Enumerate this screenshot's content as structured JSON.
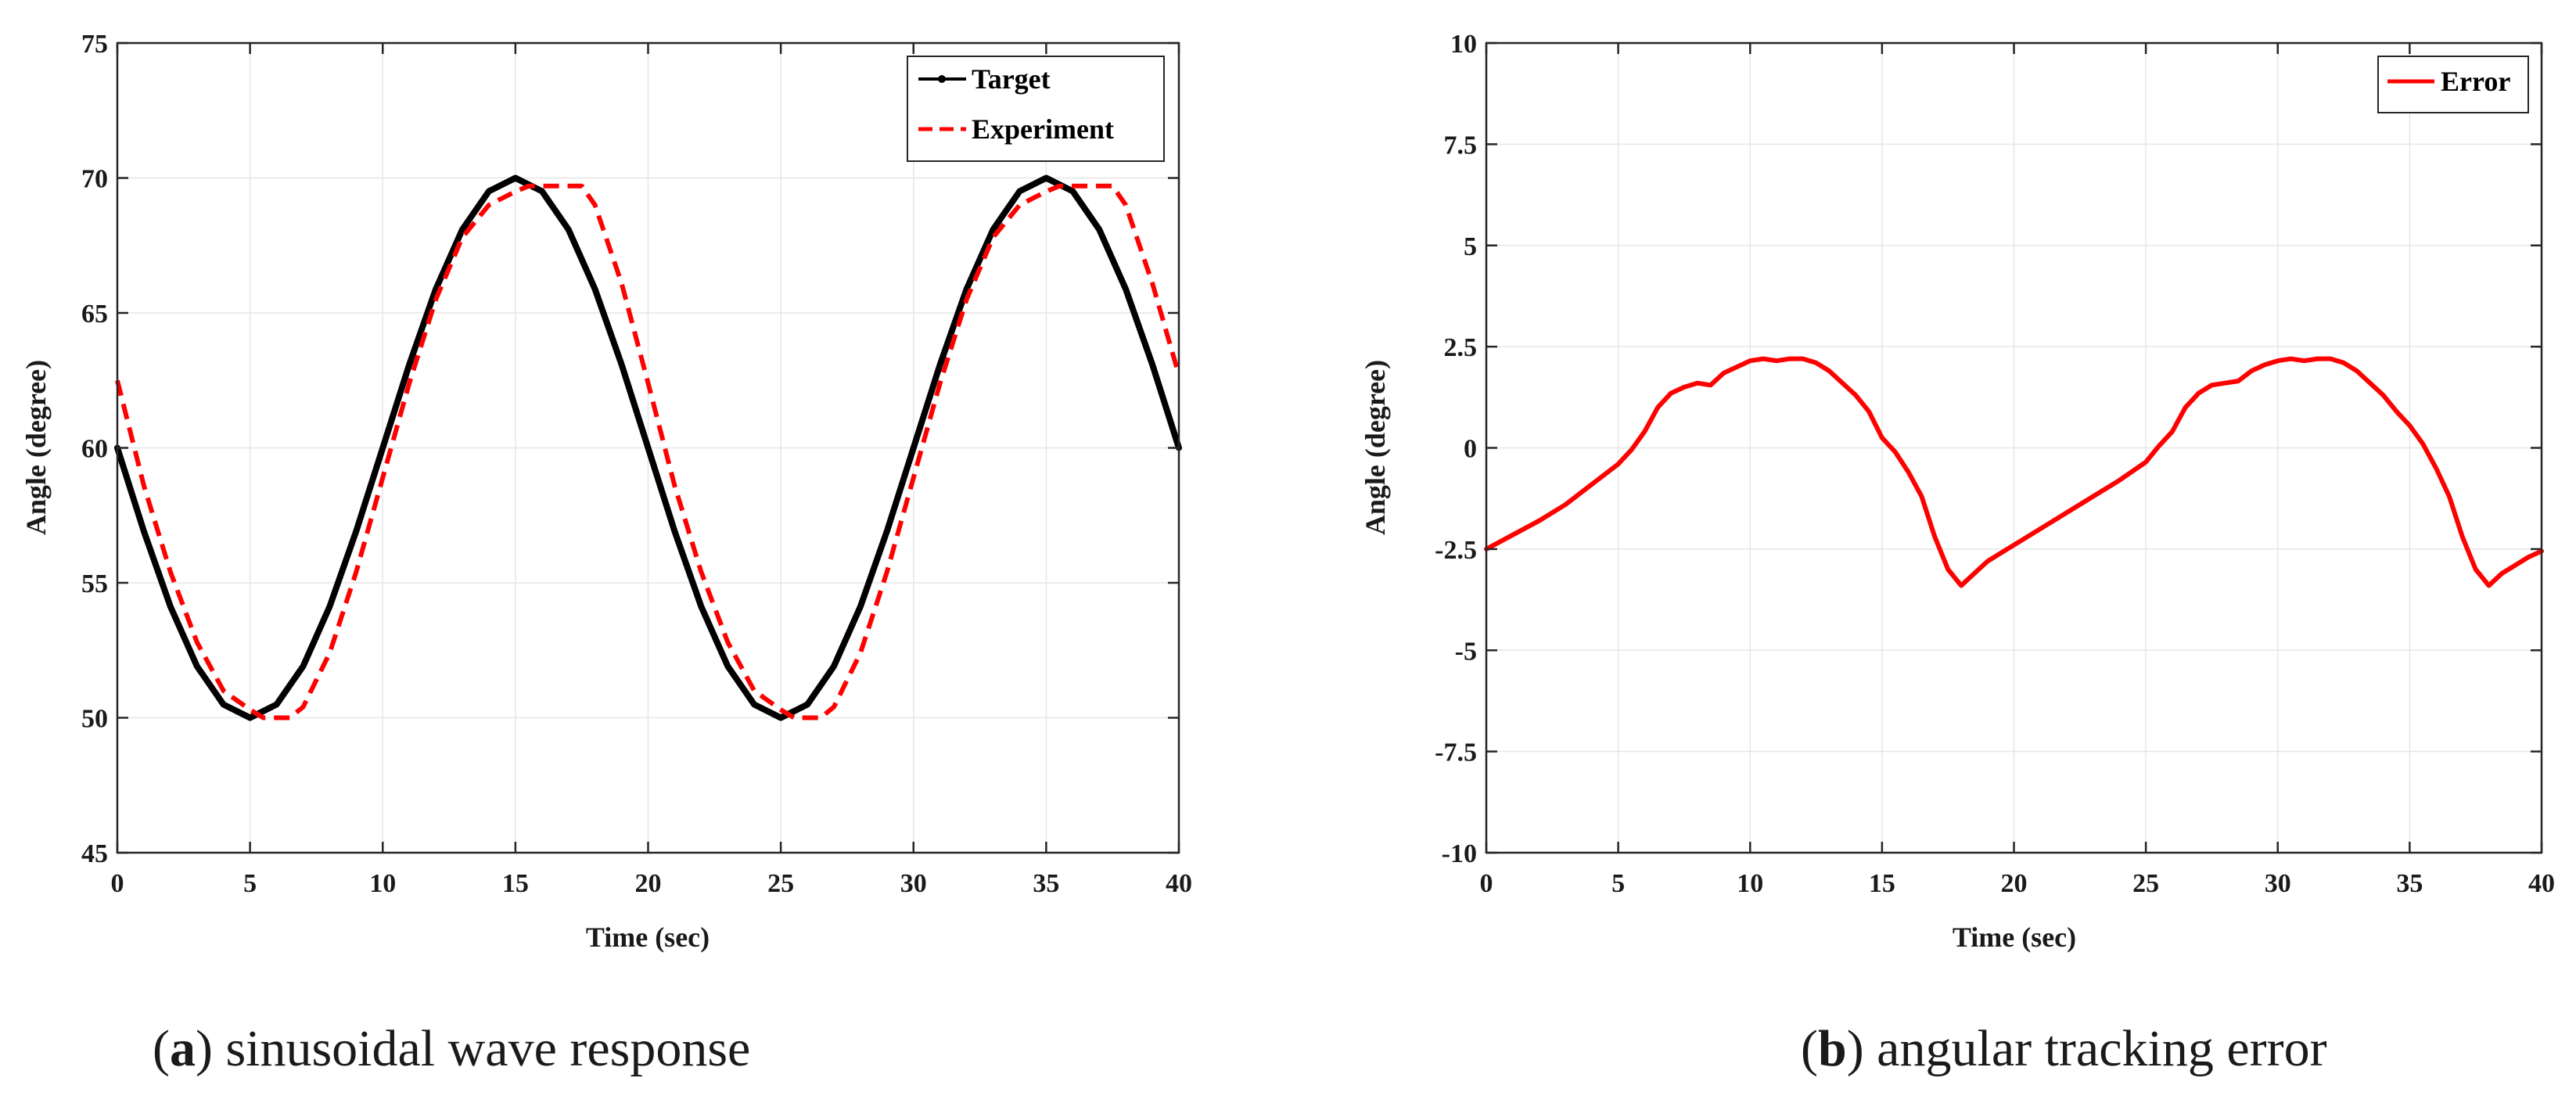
{
  "chart_data": [
    {
      "type": "line",
      "caption_letter": "a",
      "caption_text": ") sinusoidal wave response",
      "caption_open": "(",
      "title": "",
      "xlabel": "Time (sec)",
      "ylabel": "Angle (degree)",
      "xlim": [
        0,
        40
      ],
      "ylim": [
        45,
        75
      ],
      "xticks": [
        0,
        5,
        10,
        15,
        20,
        25,
        30,
        35,
        40
      ],
      "yticks": [
        45,
        50,
        55,
        60,
        65,
        70,
        75
      ],
      "xtick_labels": [
        "0",
        "5",
        "10",
        "15",
        "20",
        "25",
        "30",
        "35",
        "40"
      ],
      "ytick_labels": [
        "45",
        "50",
        "55",
        "60",
        "65",
        "70",
        "75"
      ],
      "grid": true,
      "legend_position": "top-right",
      "series": [
        {
          "name": "Target",
          "color": "#000000",
          "style": "solid-with-dot-marker",
          "x": [
            0,
            1,
            2,
            3,
            4,
            5,
            6,
            7,
            8,
            9,
            10,
            11,
            12,
            13,
            14,
            15,
            16,
            17,
            18,
            19,
            20,
            21,
            22,
            23,
            24,
            25,
            26,
            27,
            28,
            29,
            30,
            31,
            32,
            33,
            34,
            35,
            36,
            37,
            38,
            39,
            40
          ],
          "y": [
            60,
            56.91,
            54.12,
            51.91,
            50.49,
            50,
            50.49,
            51.91,
            54.12,
            56.91,
            60,
            63.09,
            65.88,
            68.09,
            69.51,
            70,
            69.51,
            68.09,
            65.88,
            63.09,
            60,
            56.91,
            54.12,
            51.91,
            50.49,
            50,
            50.49,
            51.91,
            54.12,
            56.91,
            60,
            63.09,
            65.88,
            68.09,
            69.51,
            70,
            69.51,
            68.09,
            65.88,
            63.09,
            60
          ]
        },
        {
          "name": "Experiment",
          "color": "#ff0000",
          "style": "dashed",
          "x": [
            0,
            1,
            2,
            3,
            4,
            5,
            5.5,
            6,
            6.5,
            7,
            8,
            9,
            10,
            11,
            12,
            13,
            14,
            15,
            15.5,
            16,
            16.5,
            17,
            17.5,
            18,
            19,
            20,
            21,
            22,
            23,
            24,
            25,
            25.5,
            26,
            26.5,
            27,
            28,
            29,
            30,
            31,
            32,
            33,
            34,
            35,
            35.5,
            36,
            36.5,
            37,
            37.5,
            38,
            39,
            40
          ],
          "y": [
            62.5,
            58.6,
            55.4,
            52.8,
            51.0,
            50.3,
            50.0,
            50.0,
            50.0,
            50.4,
            52.4,
            55.4,
            58.9,
            62.4,
            65.5,
            67.8,
            69.0,
            69.5,
            69.7,
            69.7,
            69.7,
            69.7,
            69.7,
            69.0,
            66.1,
            62.4,
            58.6,
            55.4,
            52.8,
            51.0,
            50.3,
            50.0,
            50.0,
            50.0,
            50.4,
            52.4,
            55.4,
            58.9,
            62.4,
            65.5,
            67.8,
            69.0,
            69.5,
            69.7,
            69.7,
            69.7,
            69.7,
            69.7,
            69.0,
            66.1,
            62.7
          ]
        }
      ]
    },
    {
      "type": "line",
      "caption_letter": "b",
      "caption_text": ") angular tracking error",
      "caption_open": "(",
      "title": "",
      "xlabel": "Time (sec)",
      "ylabel": "Angle (degree)",
      "xlim": [
        0,
        40
      ],
      "ylim": [
        -10,
        10
      ],
      "xticks": [
        0,
        5,
        10,
        15,
        20,
        25,
        30,
        35,
        40
      ],
      "yticks": [
        -10,
        -7.5,
        -5,
        -2.5,
        0,
        2.5,
        5,
        7.5,
        10
      ],
      "xtick_labels": [
        "0",
        "5",
        "10",
        "15",
        "20",
        "25",
        "30",
        "35",
        "40"
      ],
      "ytick_labels": [
        "-10",
        "-7.5",
        "-5",
        "-2.5",
        "0",
        "2.5",
        "5",
        "7.5",
        "10"
      ],
      "grid": true,
      "legend_position": "top-right",
      "series": [
        {
          "name": "Error",
          "color": "#ff0000",
          "style": "solid",
          "x": [
            0,
            1,
            2,
            3,
            4,
            5,
            5.5,
            6,
            6.5,
            7,
            7.5,
            8,
            8.5,
            9,
            9.5,
            10,
            10.5,
            11,
            11.5,
            12,
            12.5,
            13,
            13.5,
            14,
            14.5,
            15,
            15.5,
            16,
            16.5,
            17,
            17.5,
            18,
            18.5,
            19,
            19.5,
            20,
            21,
            22,
            23,
            24,
            25,
            25.5,
            26,
            26.5,
            27,
            27.5,
            28,
            28.5,
            29,
            29.5,
            30,
            30.5,
            31,
            31.5,
            32,
            32.5,
            33,
            33.5,
            34,
            34.5,
            35,
            35.5,
            36,
            36.5,
            37,
            37.5,
            38,
            38.5,
            39,
            39.5,
            40
          ],
          "y": [
            -2.5,
            -2.15,
            -1.8,
            -1.4,
            -0.9,
            -0.4,
            -0.05,
            0.4,
            1.0,
            1.35,
            1.5,
            1.6,
            1.55,
            1.85,
            2.0,
            2.15,
            2.2,
            2.15,
            2.2,
            2.2,
            2.1,
            1.9,
            1.6,
            1.3,
            0.9,
            0.25,
            -0.1,
            -0.6,
            -1.2,
            -2.2,
            -3.0,
            -3.4,
            -3.1,
            -2.8,
            -2.6,
            -2.4,
            -2.0,
            -1.6,
            -1.2,
            -0.8,
            -0.35,
            0.05,
            0.4,
            1.0,
            1.35,
            1.55,
            1.6,
            1.65,
            1.9,
            2.05,
            2.15,
            2.2,
            2.15,
            2.2,
            2.2,
            2.1,
            1.9,
            1.6,
            1.3,
            0.9,
            0.55,
            0.1,
            -0.5,
            -1.2,
            -2.2,
            -3.0,
            -3.4,
            -3.1,
            -2.9,
            -2.7,
            -2.55
          ]
        }
      ]
    }
  ]
}
